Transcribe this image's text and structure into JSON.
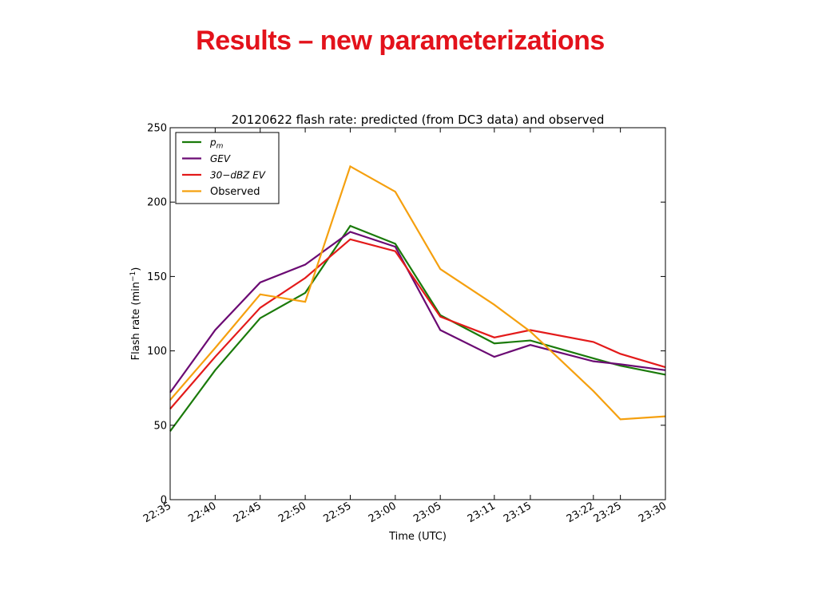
{
  "slide": {
    "title": "Results – new parameterizations",
    "title_color": "#e3121b"
  },
  "chart_data": {
    "type": "line",
    "title": "20120622 flash rate: predicted (from DC3 data) and observed",
    "xlabel": "Time (UTC)",
    "ylabel": "Flash rate (min",
    "ylabel_sup": "−1",
    "ylabel_close": ")",
    "ylim": [
      0,
      250
    ],
    "yticks": [
      0,
      50,
      100,
      150,
      200,
      250
    ],
    "xlim": [
      0,
      55
    ],
    "x": [
      0,
      5,
      10,
      15,
      20,
      25,
      30,
      36,
      40,
      47,
      50,
      55
    ],
    "xtick_labels": [
      "22:35",
      "22:40",
      "22:45",
      "22:50",
      "22:55",
      "23:00",
      "23:05",
      "23:11",
      "23:15",
      "23:22",
      "23:25",
      "23:30"
    ],
    "grid": false,
    "legend_position": "top-left",
    "series": [
      {
        "name": "p",
        "name_sub": "m",
        "color": "#1a7a0a",
        "values": [
          46,
          87,
          122,
          139,
          184,
          172,
          124,
          105,
          107,
          95,
          90,
          84
        ]
      },
      {
        "name": "GEV",
        "name_sub": "",
        "color": "#6b0a73",
        "values": [
          72,
          114,
          146,
          158,
          180,
          170,
          114,
          96,
          104,
          93,
          91,
          87
        ]
      },
      {
        "name": "30−dBZ EV",
        "name_sub": "",
        "color": "#e31a1a",
        "values": [
          61,
          96,
          129,
          149,
          175,
          167,
          123,
          109,
          114,
          106,
          98,
          89
        ]
      },
      {
        "name": "Observed",
        "name_sub": "",
        "color": "#f5a00f",
        "values": [
          67,
          102,
          138,
          133,
          224,
          207,
          155,
          131,
          113,
          73,
          54,
          56
        ]
      }
    ]
  }
}
